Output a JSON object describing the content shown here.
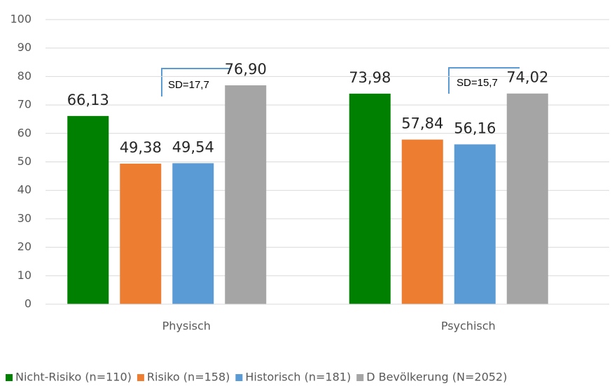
{
  "chart_data": {
    "type": "bar",
    "categories": [
      "Physisch",
      "Psychisch"
    ],
    "series": [
      {
        "name": "Nicht-Risiko (n=110)",
        "color": "#008000",
        "values": [
          66.13,
          73.98
        ],
        "value_labels": [
          "66,13",
          "73,98"
        ]
      },
      {
        "name": "Risiko (n=158)",
        "color": "#ed7d31",
        "values": [
          49.38,
          57.84
        ],
        "value_labels": [
          "49,38",
          "57,84"
        ]
      },
      {
        "name": "Historisch (n=181)",
        "color": "#5b9bd5",
        "values": [
          49.54,
          56.16
        ],
        "value_labels": [
          "49,54",
          "56,16"
        ]
      },
      {
        "name": "D Bevölkerung (N=2052)",
        "color": "#a5a5a5",
        "values": [
          76.9,
          74.02
        ],
        "value_labels": [
          "76,90",
          "74,02"
        ]
      }
    ],
    "annotations": [
      "SD=17,7",
      "SD=15,7"
    ],
    "ylim": [
      0,
      100
    ],
    "yticks": [
      0,
      10,
      20,
      30,
      40,
      50,
      60,
      70,
      80,
      90,
      100
    ],
    "grid": true,
    "legend": "bottom"
  }
}
